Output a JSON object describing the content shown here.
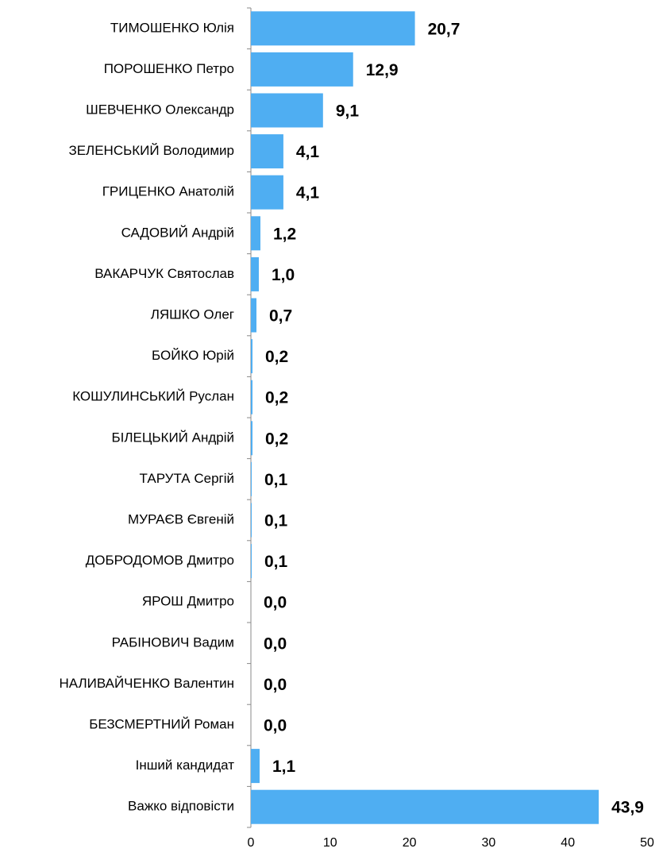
{
  "chart_data": {
    "type": "barh",
    "categories": [
      "ТИМОШЕНКО Юлія",
      "ПОРОШЕНКО Петро",
      "ШЕВЧЕНКО Олександр",
      "ЗЕЛЕНСЬКИЙ Володимир",
      "ГРИЦЕНКО Анатолій",
      "САДОВИЙ Андрій",
      "ВАКАРЧУК Святослав",
      "ЛЯШКО Олег",
      "БОЙКО Юрій",
      "КОШУЛИНСЬКИЙ Руслан",
      "БІЛЕЦЬКИЙ Андрій",
      "ТАРУТА Сергій",
      "МУРАЄВ Євгеній",
      "ДОБРОДОМОВ Дмитро",
      "ЯРОШ Дмитро",
      "РАБІНОВИЧ Вадим",
      "НАЛИВАЙЧЕНКО Валентин",
      "БЕЗСМЕРТНИЙ Роман",
      "Інший кандидат",
      "Важко відповісти"
    ],
    "values": [
      20.7,
      12.9,
      9.1,
      4.1,
      4.1,
      1.2,
      1.0,
      0.7,
      0.2,
      0.2,
      0.2,
      0.1,
      0.1,
      0.1,
      0.0,
      0.0,
      0.0,
      0.0,
      1.1,
      43.9
    ],
    "value_labels": [
      "20,7",
      "12,9",
      "9,1",
      "4,1",
      "4,1",
      "1,2",
      "1,0",
      "0,7",
      "0,2",
      "0,2",
      "0,2",
      "0,1",
      "0,1",
      "0,1",
      "0,0",
      "0,0",
      "0,0",
      "0,0",
      "1,1",
      "43,9"
    ],
    "color": "#4faef2",
    "xlim": [
      0,
      50
    ],
    "xticks": [
      0,
      10,
      20,
      30,
      40,
      50
    ],
    "grid": false
  }
}
